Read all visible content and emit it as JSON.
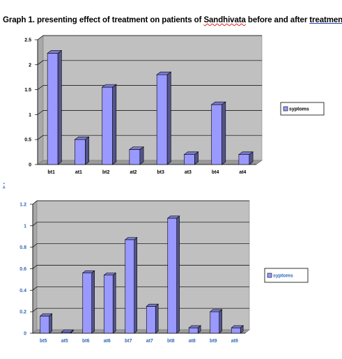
{
  "document": {
    "title_prefix": "Graph 1.  presenting effect of treatment on patients of ",
    "title_word": "Sandhivata",
    "title_middle": " before and after ",
    "title_last": "treatment",
    "para_mark": ":"
  },
  "chart_data": [
    {
      "type": "bar",
      "categories": [
        "bt1",
        "at1",
        "bt2",
        "at2",
        "bt3",
        "at3",
        "bt4",
        "at4"
      ],
      "series": [
        {
          "name": "syptoms",
          "values": [
            2.23,
            0.5,
            1.55,
            0.3,
            1.8,
            0.2,
            1.2,
            0.2
          ]
        }
      ],
      "ylim": [
        0,
        2.5
      ],
      "yticks": [
        "0",
        "0.5",
        "1",
        "1.5",
        "2",
        "2.5"
      ],
      "title": "",
      "xlabel": "",
      "ylabel": "",
      "grid": true,
      "legend": "right",
      "style": {
        "bar_color": "#9999ff",
        "plot_bg": "#c0c0c0",
        "label_color": "#000000"
      }
    },
    {
      "type": "bar",
      "categories": [
        "bt5",
        "at5",
        "bt6",
        "at6",
        "bt7",
        "at7",
        "bt8",
        "at8",
        "bt9",
        "at9"
      ],
      "series": [
        {
          "name": "syptoms",
          "values": [
            0.16,
            0.01,
            0.56,
            0.54,
            0.87,
            0.25,
            1.07,
            0.05,
            0.2,
            0.05
          ]
        }
      ],
      "ylim": [
        0,
        1.2
      ],
      "yticks": [
        "0",
        "0.2",
        "0.4",
        "0.6",
        "0.8",
        "1",
        "1.2"
      ],
      "title": "",
      "xlabel": "",
      "ylabel": "",
      "grid": true,
      "legend": "right",
      "style": {
        "bar_color": "#9999ff",
        "plot_bg": "#c0c0c0",
        "label_color": "#2e6ab7"
      }
    }
  ]
}
